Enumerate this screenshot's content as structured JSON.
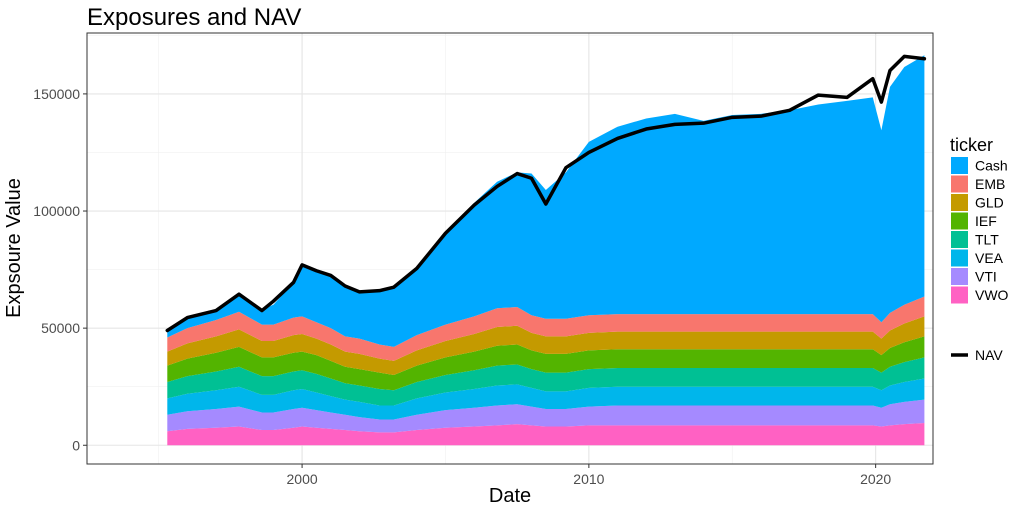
{
  "chart_data": {
    "type": "area",
    "title": "Exposures and NAV",
    "xlabel": "Date",
    "ylabel": "Expsoure Value",
    "xlim": [
      1992.5,
      2022.0
    ],
    "ylim": [
      -8000,
      176000
    ],
    "x_ticks": [
      2000,
      2010,
      2020
    ],
    "y_ticks": [
      0,
      50000,
      100000,
      150000
    ],
    "grid": true,
    "legend_position": "right",
    "legend_title": "ticker",
    "stack_order_bottom_to_top": [
      "VWO",
      "VTI",
      "VEA",
      "TLT",
      "IEF",
      "GLD",
      "EMB",
      "Cash"
    ],
    "x": [
      1995.3,
      1996,
      1997,
      1997.8,
      1998.6,
      1999,
      1999.7,
      2000,
      2000.5,
      2001,
      2001.5,
      2002,
      2002.7,
      2003.2,
      2004,
      2005,
      2006,
      2006.8,
      2007.5,
      2008,
      2008.5,
      2009.2,
      2010,
      2011,
      2012,
      2013,
      2014,
      2015,
      2016,
      2017,
      2018,
      2019,
      2019.9,
      2020.2,
      2020.5,
      2021,
      2021.7
    ],
    "series": [
      {
        "name": "VWO",
        "color": "#FF61C3",
        "values": [
          6000,
          7000,
          7500,
          8000,
          6500,
          6500,
          7500,
          8000,
          7500,
          7000,
          6500,
          6000,
          5500,
          5500,
          6500,
          7500,
          8000,
          8500,
          9000,
          8500,
          8000,
          8000,
          8500,
          8500,
          8500,
          8500,
          8500,
          8500,
          8500,
          8500,
          8500,
          8500,
          8500,
          8000,
          8500,
          9000,
          9500
        ]
      },
      {
        "name": "VTI",
        "color": "#A58AFF",
        "values": [
          7000,
          7500,
          8000,
          8500,
          7500,
          7500,
          8000,
          8000,
          7500,
          7000,
          6500,
          6000,
          5500,
          5500,
          6500,
          7500,
          8000,
          8500,
          8500,
          8000,
          7500,
          7500,
          8000,
          8500,
          8500,
          8500,
          8500,
          8500,
          8500,
          8500,
          8500,
          8500,
          8500,
          8000,
          9000,
          9500,
          10000
        ]
      },
      {
        "name": "VEA",
        "color": "#00B6EB",
        "values": [
          7000,
          7500,
          8000,
          8500,
          7500,
          7500,
          8000,
          8000,
          7500,
          7000,
          6500,
          6500,
          6000,
          6000,
          7000,
          7500,
          8000,
          8500,
          8500,
          8000,
          7500,
          7500,
          8000,
          8000,
          8000,
          8000,
          8000,
          8000,
          8000,
          8000,
          8000,
          8000,
          8000,
          7500,
          8000,
          8500,
          9000
        ]
      },
      {
        "name": "TLT",
        "color": "#00C094",
        "values": [
          7000,
          7500,
          8000,
          8500,
          8000,
          8000,
          8000,
          8000,
          8000,
          7500,
          7000,
          7000,
          7000,
          6500,
          7000,
          7500,
          8000,
          8500,
          8500,
          8000,
          8000,
          8000,
          8000,
          8000,
          8000,
          8000,
          8000,
          8000,
          8000,
          8000,
          8000,
          8000,
          8000,
          7500,
          8000,
          8500,
          9000
        ]
      },
      {
        "name": "IEF",
        "color": "#53B400",
        "values": [
          7000,
          7500,
          8000,
          8500,
          8000,
          8000,
          8000,
          8000,
          8000,
          7500,
          7000,
          7000,
          7000,
          6500,
          7000,
          7500,
          8000,
          8500,
          8500,
          8000,
          8000,
          8000,
          8000,
          8000,
          8000,
          8000,
          8000,
          8000,
          8000,
          8000,
          8000,
          8000,
          8000,
          7500,
          8000,
          8500,
          9000
        ]
      },
      {
        "name": "GLD",
        "color": "#C49A00",
        "values": [
          6000,
          6500,
          7000,
          7500,
          7000,
          7000,
          7500,
          7500,
          7000,
          7000,
          6500,
          6500,
          6000,
          6000,
          6500,
          7000,
          7500,
          8000,
          8000,
          7500,
          7500,
          7500,
          7500,
          7500,
          7500,
          7500,
          7500,
          7500,
          7500,
          7500,
          7500,
          7500,
          7500,
          7000,
          7500,
          8000,
          8500
        ]
      },
      {
        "name": "EMB",
        "color": "#F8766D",
        "values": [
          6000,
          6500,
          7000,
          7500,
          7000,
          7000,
          7500,
          7500,
          7000,
          7000,
          6500,
          6500,
          6000,
          6000,
          6500,
          7000,
          7500,
          8000,
          8000,
          7500,
          7500,
          7500,
          7500,
          7500,
          7500,
          7500,
          7500,
          7500,
          7500,
          7500,
          7500,
          7500,
          7500,
          7000,
          7500,
          8000,
          8500
        ]
      },
      {
        "name": "Cash",
        "color": "#00A9FF",
        "values": [
          3000,
          4500,
          4000,
          7500,
          6500,
          8500,
          15000,
          22500,
          22000,
          22500,
          21500,
          20000,
          23000,
          25500,
          28500,
          39000,
          48500,
          54000,
          57500,
          60500,
          55000,
          62500,
          74000,
          80000,
          83500,
          85500,
          82500,
          85000,
          85500,
          87000,
          89500,
          91000,
          92500,
          82000,
          96500,
          101500,
          103000
        ]
      },
      {
        "name": "NAV",
        "color": "#000000",
        "line": true,
        "values": [
          49000,
          54500,
          57500,
          64500,
          57500,
          61500,
          69500,
          77000,
          74500,
          72500,
          68000,
          65500,
          66000,
          67500,
          75500,
          90500,
          102500,
          110500,
          116000,
          114000,
          103000,
          118500,
          125000,
          131000,
          135000,
          137000,
          137500,
          140000,
          140500,
          143000,
          149500,
          148500,
          156500,
          146500,
          160000,
          166000,
          165000
        ]
      }
    ]
  }
}
